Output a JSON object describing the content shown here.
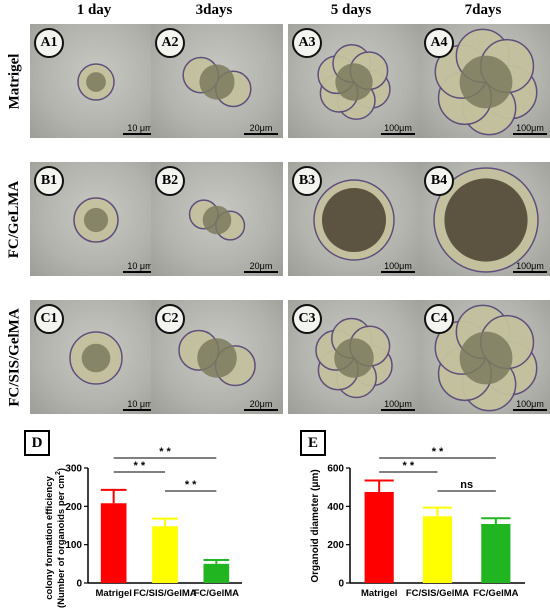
{
  "columns": [
    "1 day",
    "3days",
    "5 days",
    "7days"
  ],
  "rows": [
    "Matrigel",
    "FC/GeLMA",
    "FC/SIS/GelMA"
  ],
  "panels": [
    {
      "label": "A1",
      "scale": "10 μm"
    },
    {
      "label": "A2",
      "scale": "20μm"
    },
    {
      "label": "A3",
      "scale": "100μm"
    },
    {
      "label": "A4",
      "scale": "100μm"
    },
    {
      "label": "B1",
      "scale": "10 μm"
    },
    {
      "label": "B2",
      "scale": "20μm"
    },
    {
      "label": "B3",
      "scale": "100μm"
    },
    {
      "label": "B4",
      "scale": "100μm"
    },
    {
      "label": "C1",
      "scale": "10 μm"
    },
    {
      "label": "C2",
      "scale": "20μm"
    },
    {
      "label": "C3",
      "scale": "100μm"
    },
    {
      "label": "C4",
      "scale": "100μm"
    }
  ],
  "chart_data": [
    {
      "type": "bar",
      "panel_label": "D",
      "categories": [
        "Matrigel",
        "FC/SIS/GelMA",
        "FC/GelMA"
      ],
      "values": [
        208,
        148,
        50
      ],
      "errors": [
        35,
        20,
        10
      ],
      "colors": [
        "#ff0000",
        "#ffff00",
        "#22b522"
      ],
      "ylabel_line1": "colony formation efficiency",
      "ylabel_line2": "(Number of organoids per cm",
      "ylabel_sup": "2",
      "ylabel_end": ")",
      "ylim": [
        0,
        300
      ],
      "yticks": [
        0,
        100,
        200,
        300
      ],
      "significance": [
        {
          "from": 0,
          "to": 2,
          "label": "* *"
        },
        {
          "from": 0,
          "to": 1,
          "label": "* *"
        },
        {
          "from": 1,
          "to": 2,
          "label": "* *"
        }
      ]
    },
    {
      "type": "bar",
      "panel_label": "E",
      "categories": [
        "Matrigel",
        "FC/SIS/GelMA",
        "FC/GelMA"
      ],
      "values": [
        475,
        348,
        308
      ],
      "errors": [
        60,
        45,
        30
      ],
      "colors": [
        "#ff0000",
        "#ffff00",
        "#22b522"
      ],
      "ylabel": "Organoid diameter (μm)",
      "ylim": [
        0,
        600
      ],
      "yticks": [
        0,
        200,
        400,
        600
      ],
      "significance": [
        {
          "from": 0,
          "to": 2,
          "label": "* *"
        },
        {
          "from": 0,
          "to": 1,
          "label": "* *"
        },
        {
          "from": 1,
          "to": 2,
          "label": "ns"
        }
      ]
    }
  ]
}
